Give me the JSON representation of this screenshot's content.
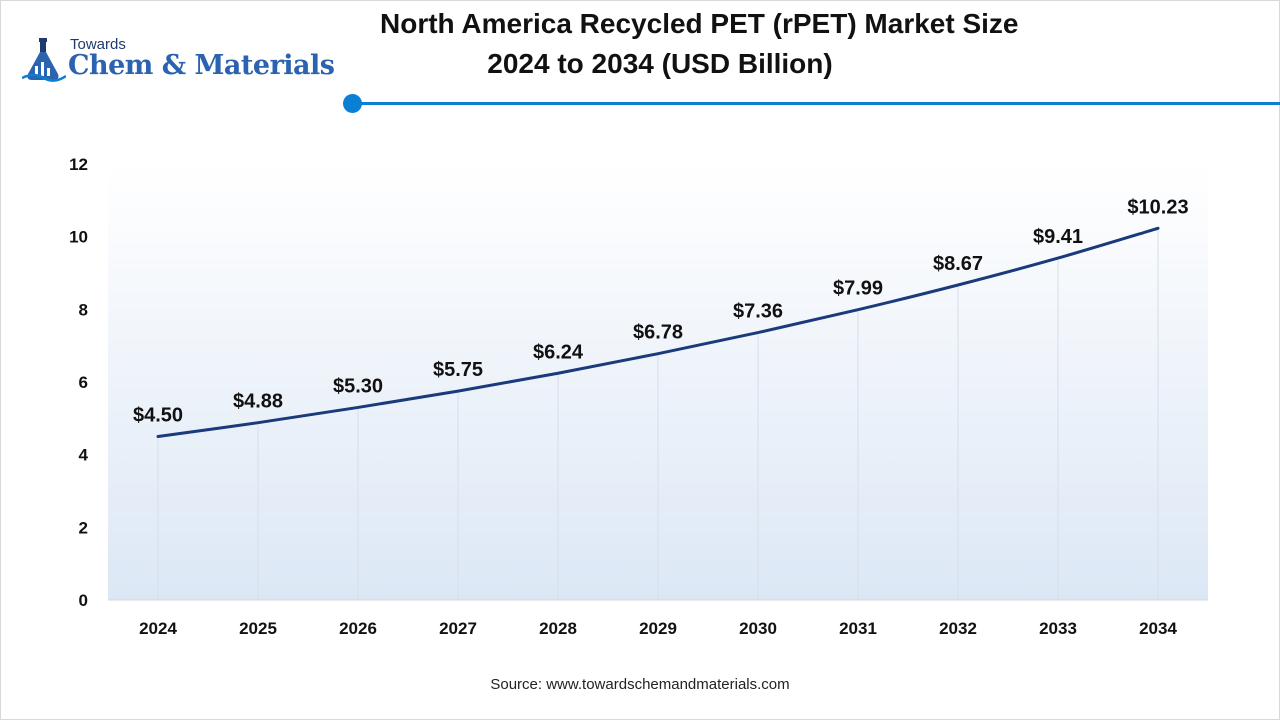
{
  "branding": {
    "logo_top": "Towards",
    "logo_main": "Chem & Materials",
    "brand_color": "#2b63b0",
    "accent_color": "#0b7fd4"
  },
  "title_line1": "North America Recycled PET (rPET) Market Size",
  "title_line2": "2024 to 2034 (USD Billion)",
  "source": "Source: www.towardschemandmaterials.com",
  "chart_data": {
    "type": "line",
    "title": "North America Recycled PET (rPET) Market Size 2024 to 2034 (USD Billion)",
    "categories": [
      "2024",
      "2025",
      "2026",
      "2027",
      "2028",
      "2029",
      "2030",
      "2031",
      "2032",
      "2033",
      "2034"
    ],
    "values": [
      4.5,
      4.88,
      5.3,
      5.75,
      6.24,
      6.78,
      7.36,
      7.99,
      8.67,
      9.41,
      10.23
    ],
    "value_labels": [
      "$4.50",
      "$4.88",
      "$5.30",
      "$5.75",
      "$6.24",
      "$6.78",
      "$7.36",
      "$7.99",
      "$8.67",
      "$9.41",
      "$10.23"
    ],
    "yticks": [
      "0",
      "2",
      "4",
      "6",
      "8",
      "10",
      "12"
    ],
    "ylim": [
      0,
      12
    ],
    "xlabel": "",
    "ylabel": "",
    "line_color": "#1a3a7c",
    "grid": "vertical"
  }
}
